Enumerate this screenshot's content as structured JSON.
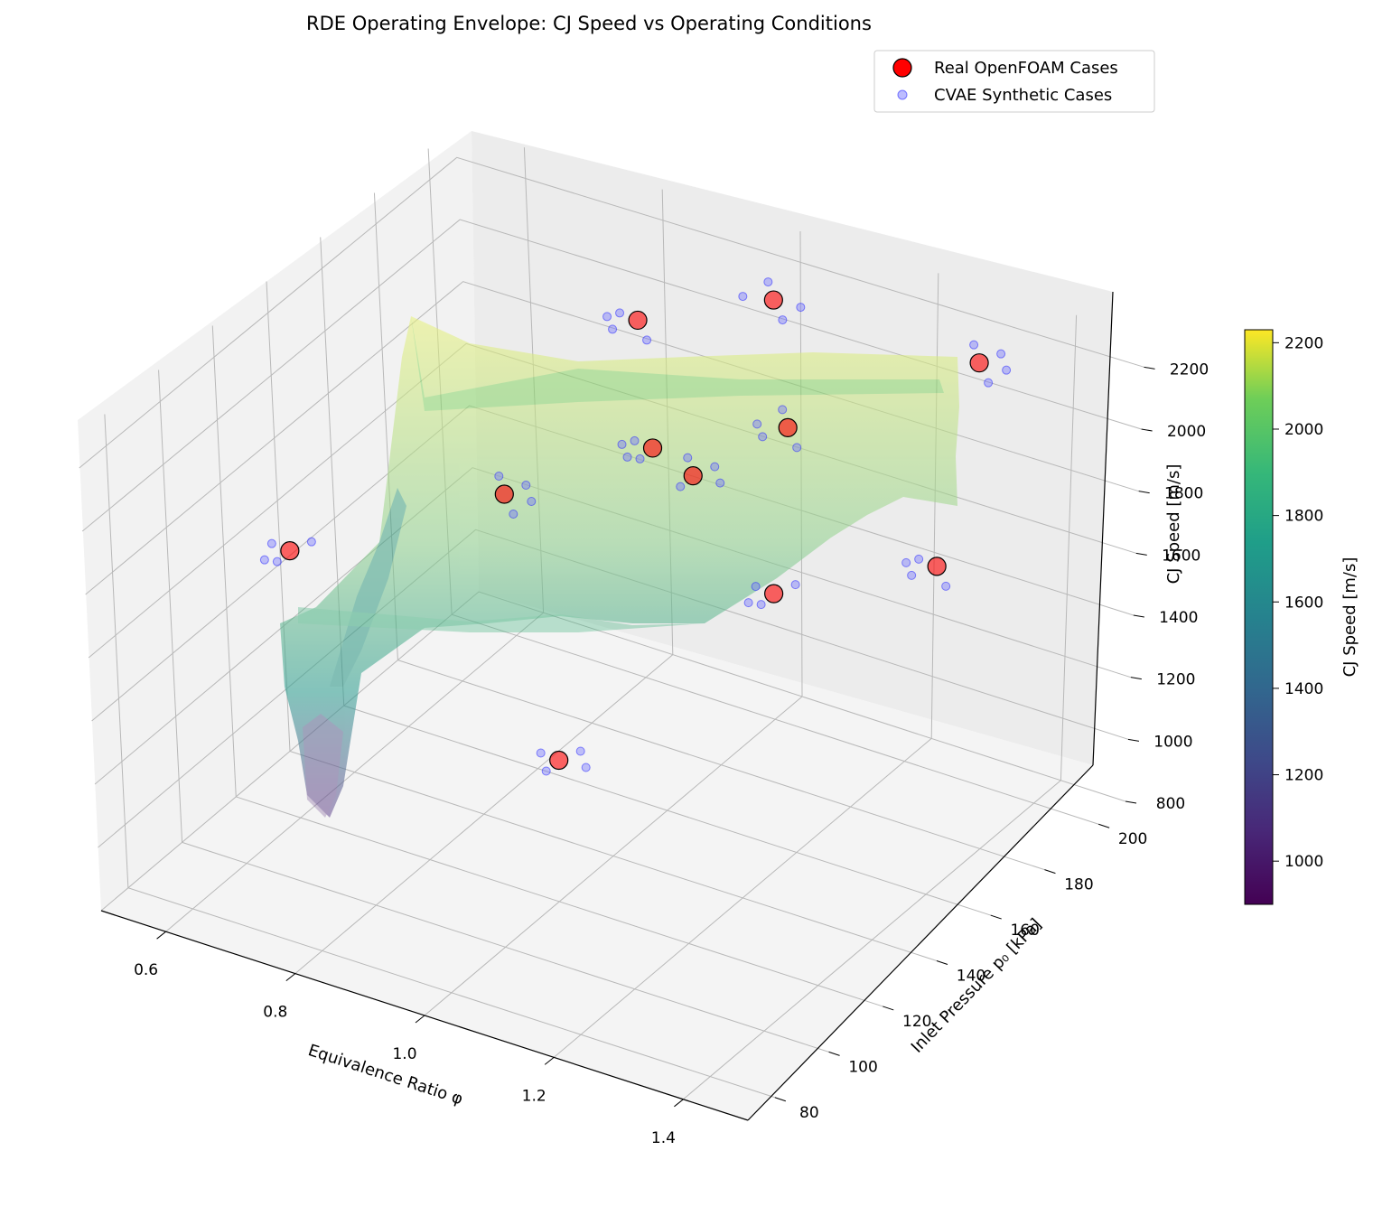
{
  "chart_data": {
    "type": "scatter",
    "title": "RDE Operating Envelope: CJ Speed vs Operating Conditions",
    "xlabel": "Equivalence Ratio φ",
    "ylabel": "Inlet Pressure p₀ [kPa]",
    "zlabel": "CJ Speed [m/s]",
    "xlim": [
      0.5,
      1.5
    ],
    "ylim": [
      70,
      210
    ],
    "zlim": [
      800,
      2300
    ],
    "x_ticks": [
      "0.6",
      "0.8",
      "1.0",
      "1.2",
      "1.4"
    ],
    "y_ticks": [
      "80",
      "100",
      "120",
      "140",
      "160",
      "180",
      "200"
    ],
    "z_ticks": [
      "800",
      "1000",
      "1200",
      "1400",
      "1600",
      "1800",
      "2000",
      "2200"
    ],
    "grid": true,
    "legend_position": "top-right",
    "colorbar": {
      "label": "CJ Speed [m/s]",
      "range": [
        900,
        2230
      ],
      "ticks": [
        "1000",
        "1200",
        "1400",
        "1600",
        "1800",
        "2000",
        "2200"
      ],
      "colormap": "viridis"
    },
    "surface": {
      "description_colormap": "viridis",
      "alpha": 0.35
    },
    "series": [
      {
        "name": "Real OpenFOAM Cases",
        "color": "#ff0000",
        "points": [
          {
            "x": 0.6,
            "y": 120,
            "z": 1650
          },
          {
            "x": 0.8,
            "y": 150,
            "z": 1750
          },
          {
            "x": 0.8,
            "y": 200,
            "z": 1950
          },
          {
            "x": 1.0,
            "y": 120,
            "z": 1250
          },
          {
            "x": 1.0,
            "y": 200,
            "z": 2150
          },
          {
            "x": 0.9,
            "y": 180,
            "z": 1750
          },
          {
            "x": 1.0,
            "y": 170,
            "z": 1800
          },
          {
            "x": 1.1,
            "y": 180,
            "z": 1950
          },
          {
            "x": 1.2,
            "y": 150,
            "z": 1700
          },
          {
            "x": 1.3,
            "y": 200,
            "z": 2150
          },
          {
            "x": 1.4,
            "y": 160,
            "z": 1850
          }
        ]
      },
      {
        "name": "CVAE Synthetic Cases",
        "color": "#4a4aff"
      }
    ]
  }
}
